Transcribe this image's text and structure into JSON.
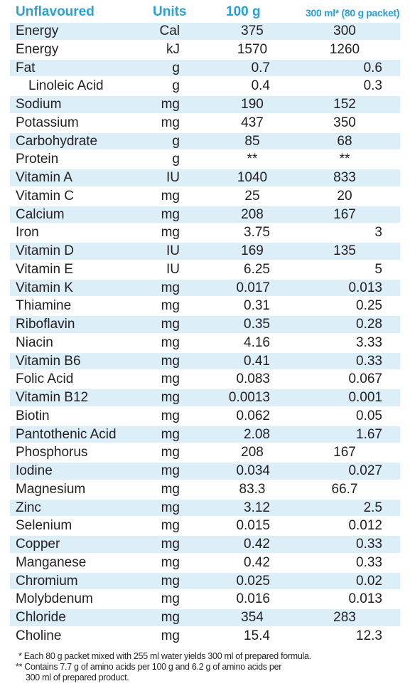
{
  "header": {
    "name": "Unflavoured",
    "units": "Units",
    "per100g": "100 g",
    "per300ml": "300 ml* (80 g packet)"
  },
  "rows": [
    {
      "name": "Energy",
      "unit": "Cal",
      "v1": "375",
      "v2": "300",
      "shaded": true
    },
    {
      "name": "Energy",
      "unit": "kJ",
      "v1": "1570",
      "v2": "1260",
      "shaded": false
    },
    {
      "name": "Fat",
      "unit": "g",
      "v1": "0.7",
      "v2": "0.6",
      "shaded": true,
      "dec": true
    },
    {
      "name": "Linoleic Acid",
      "unit": "g",
      "v1": "0.4",
      "v2": "0.3",
      "shaded": false,
      "dec": true,
      "indent": true
    },
    {
      "name": "Sodium",
      "unit": "mg",
      "v1": "190",
      "v2": "152",
      "shaded": true
    },
    {
      "name": "Potassium",
      "unit": "mg",
      "v1": "437",
      "v2": "350",
      "shaded": false
    },
    {
      "name": "Carbohydrate",
      "unit": "g",
      "v1": "85",
      "v2": "68",
      "shaded": true
    },
    {
      "name": "Protein",
      "unit": "g",
      "v1": "**",
      "v2": "**",
      "shaded": false
    },
    {
      "name": "Vitamin A",
      "unit": "IU",
      "v1": "1040",
      "v2": "833",
      "shaded": true
    },
    {
      "name": "Vitamin C",
      "unit": "mg",
      "v1": "25",
      "v2": "20",
      "shaded": false
    },
    {
      "name": "Calcium",
      "unit": "mg",
      "v1": "208",
      "v2": "167",
      "shaded": true
    },
    {
      "name": "Iron",
      "unit": "mg",
      "v1": "3.75",
      "v2": "3",
      "shaded": false,
      "dec": true
    },
    {
      "name": "Vitamin D",
      "unit": "IU",
      "v1": "169",
      "v2": "135",
      "shaded": true
    },
    {
      "name": "Vitamin E",
      "unit": "IU",
      "v1": "6.25",
      "v2": "5",
      "shaded": false,
      "dec": true
    },
    {
      "name": "Vitamin K",
      "unit": "mg",
      "v1": "0.017",
      "v2": "0.013",
      "shaded": true,
      "dec": true
    },
    {
      "name": "Thiamine",
      "unit": "mg",
      "v1": "0.31",
      "v2": "0.25",
      "shaded": false,
      "dec": true
    },
    {
      "name": "Riboflavin",
      "unit": "mg",
      "v1": "0.35",
      "v2": "0.28",
      "shaded": true,
      "dec": true
    },
    {
      "name": "Niacin",
      "unit": "mg",
      "v1": "4.16",
      "v2": "3.33",
      "shaded": false,
      "dec": true
    },
    {
      "name": "Vitamin B6",
      "unit": "mg",
      "v1": "0.41",
      "v2": "0.33",
      "shaded": true,
      "dec": true
    },
    {
      "name": "Folic Acid",
      "unit": "mg",
      "v1": "0.083",
      "v2": "0.067",
      "shaded": false,
      "dec": true
    },
    {
      "name": "Vitamin B12",
      "unit": "mg",
      "v1": "0.0013",
      "v2": "0.001",
      "shaded": true,
      "dec": true
    },
    {
      "name": "Biotin",
      "unit": "mg",
      "v1": "0.062",
      "v2": "0.05",
      "shaded": false,
      "dec": true
    },
    {
      "name": "Pantothenic Acid",
      "unit": "mg",
      "v1": "2.08",
      "v2": "1.67",
      "shaded": true,
      "dec": true
    },
    {
      "name": "Phosphorus",
      "unit": "mg",
      "v1": "208",
      "v2": "167",
      "shaded": false
    },
    {
      "name": "Iodine",
      "unit": "mg",
      "v1": "0.034",
      "v2": "0.027",
      "shaded": true,
      "dec": true
    },
    {
      "name": "Magnesium",
      "unit": "mg",
      "v1": "83.3",
      "v2": "66.7",
      "shaded": false
    },
    {
      "name": "Zinc",
      "unit": "mg",
      "v1": "3.12",
      "v2": "2.5",
      "shaded": true,
      "dec": true
    },
    {
      "name": "Selenium",
      "unit": "mg",
      "v1": "0.015",
      "v2": "0.012",
      "shaded": false,
      "dec": true
    },
    {
      "name": "Copper",
      "unit": "mg",
      "v1": "0.42",
      "v2": "0.33",
      "shaded": true,
      "dec": true
    },
    {
      "name": "Manganese",
      "unit": "mg",
      "v1": "0.42",
      "v2": "0.33",
      "shaded": false,
      "dec": true
    },
    {
      "name": "Chromium",
      "unit": "mg",
      "v1": "0.025",
      "v2": "0.02",
      "shaded": true,
      "dec": true
    },
    {
      "name": "Molybdenum",
      "unit": "mg",
      "v1": "0.016",
      "v2": "0.013",
      "shaded": false,
      "dec": true
    },
    {
      "name": "Chloride",
      "unit": "mg",
      "v1": "354",
      "v2": "283",
      "shaded": true
    },
    {
      "name": "Choline",
      "unit": "mg",
      "v1": "15.4",
      "v2": "12.3",
      "shaded": false,
      "dec": true
    }
  ],
  "footnotes": {
    "line1": "* Each 80 g packet mixed with 255 ml water yields 300 ml of prepared formula.",
    "line2": "** Contains 7.7 g of amino acids per 100 g and 6.2 g of amino acids per",
    "line3": "300 ml of prepared product."
  },
  "colors": {
    "header": "#2aa0d8",
    "row_shade": "#dceef8",
    "text": "#231f20"
  }
}
